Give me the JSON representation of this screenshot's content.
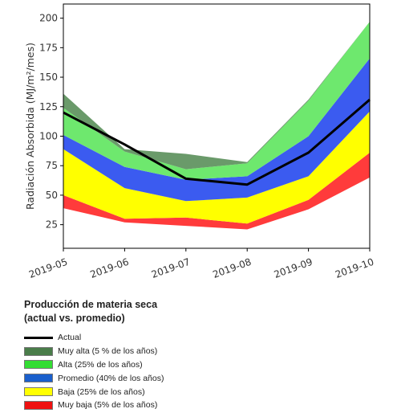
{
  "chart_data": {
    "type": "area",
    "x": [
      "2019-05",
      "2019-06",
      "2019-07",
      "2019-08",
      "2019-09",
      "2019-10"
    ],
    "ylabel": "Radiación Absorbida (MJ/m²/mes)",
    "yticks": [
      25,
      50,
      75,
      100,
      125,
      150,
      175,
      200
    ],
    "ylim": [
      5,
      212
    ],
    "grid": false,
    "bands": [
      {
        "key": "muy_baja",
        "color": "#ff3b3b",
        "lower": [
          39,
          27,
          24,
          21,
          38,
          65
        ],
        "upper": [
          50,
          30,
          31,
          26,
          46,
          86
        ]
      },
      {
        "key": "baja",
        "color": "#ffff00",
        "lower": [
          50,
          30,
          31,
          26,
          46,
          86
        ],
        "upper": [
          89,
          56,
          45,
          48,
          66,
          121
        ]
      },
      {
        "key": "promedio",
        "color": "#3b5bf0",
        "lower": [
          89,
          56,
          45,
          48,
          66,
          121
        ],
        "upper": [
          101,
          74,
          63,
          66,
          100,
          166
        ]
      },
      {
        "key": "alta",
        "color": "#6ee86e",
        "lower": [
          101,
          74,
          63,
          66,
          100,
          166
        ],
        "upper": [
          124,
          87,
          72,
          77,
          130,
          197
        ]
      },
      {
        "key": "muy_alta",
        "color": "#6a9a6a",
        "lower": [
          124,
          87,
          72,
          77,
          130,
          197
        ],
        "upper": [
          136,
          89,
          85,
          78,
          131,
          197
        ]
      }
    ],
    "actual": {
      "color": "#000000",
      "values": [
        120,
        93,
        64,
        59,
        86,
        131
      ]
    }
  },
  "legend": {
    "title_line1": "Producción de materia seca",
    "title_line2": "(actual vs. promedio)",
    "items": [
      {
        "key": "actual",
        "label": "Actual",
        "color": "#000000",
        "kind": "line"
      },
      {
        "key": "muy_alta",
        "label": "Muy alta (5 % de los años)",
        "color": "#4a7d4a",
        "kind": "band"
      },
      {
        "key": "alta",
        "label": "Alta (25% de los años)",
        "color": "#33dd33",
        "kind": "band"
      },
      {
        "key": "promedio",
        "label": "Promedio (40% de los años)",
        "color": "#1a5fcc",
        "kind": "band"
      },
      {
        "key": "baja",
        "label": "Baja (25% de los años)",
        "color": "#ffff00",
        "kind": "band"
      },
      {
        "key": "muy_baja",
        "label": "Muy baja (5% de los años)",
        "color": "#ee1111",
        "kind": "band"
      }
    ]
  }
}
